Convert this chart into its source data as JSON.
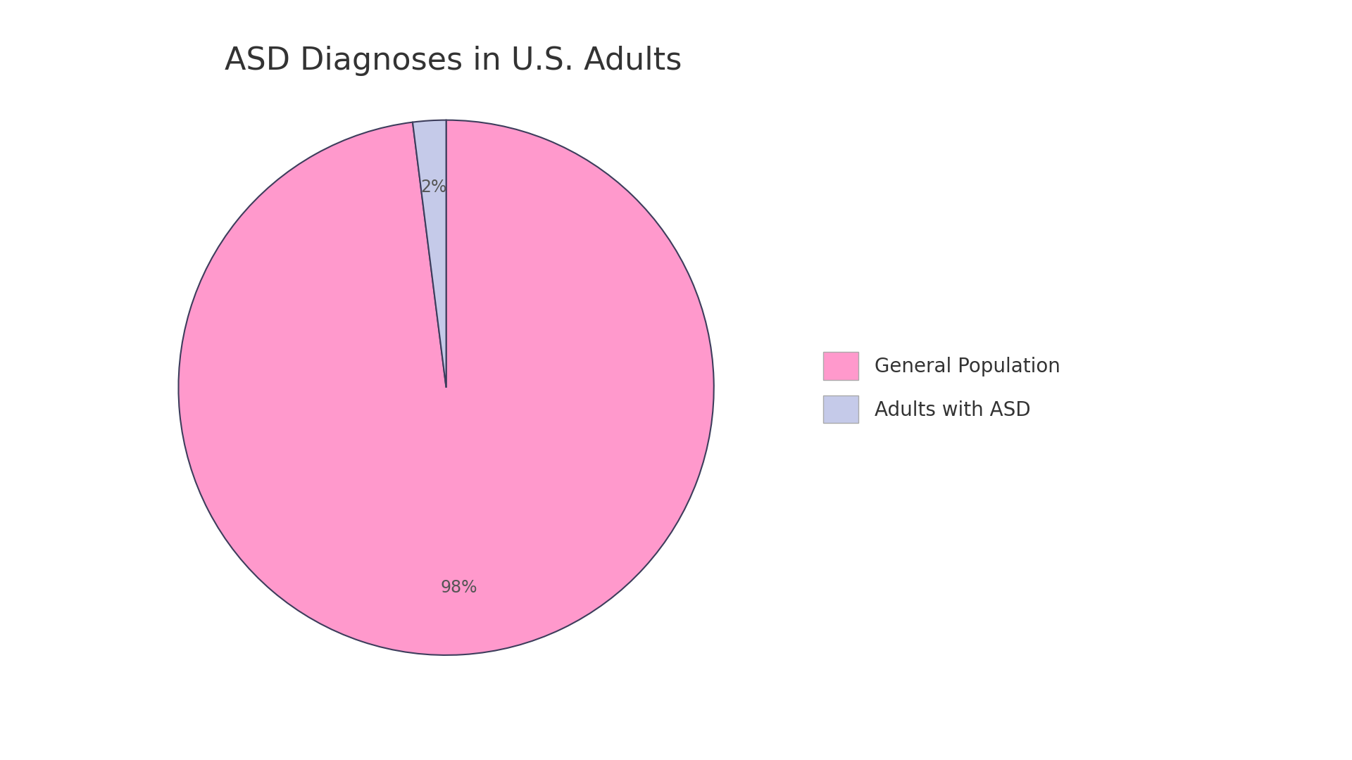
{
  "title": "ASD Diagnoses in U.S. Adults",
  "labels": [
    "General Population",
    "Adults with ASD"
  ],
  "values": [
    98,
    2
  ],
  "colors": [
    "#FF99CC",
    "#C5CAE9"
  ],
  "edge_color": "#3d3d5c",
  "edge_width": 1.5,
  "title_fontsize": 32,
  "pct_fontsize": 17,
  "background_color": "#ffffff",
  "legend_fontsize": 20,
  "startangle": 90,
  "counterclock": false
}
